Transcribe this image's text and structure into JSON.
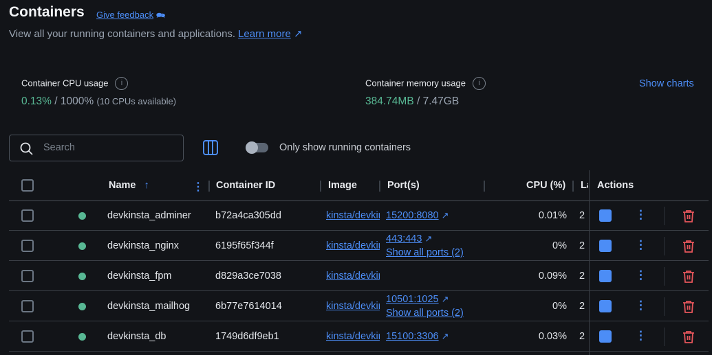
{
  "header": {
    "title": "Containers",
    "feedback": "Give feedback",
    "subtitle": "View all your running containers and applications.",
    "learn_more": "Learn more"
  },
  "stats": {
    "cpu": {
      "label": "Container CPU usage",
      "used": "0.13%",
      "sep": " / ",
      "total": "1000%",
      "note": "(10 CPUs available)"
    },
    "memory": {
      "label": "Container memory usage",
      "used": "384.74MB",
      "sep": " / ",
      "total": "7.47GB"
    },
    "show_charts": "Show charts"
  },
  "toolbar": {
    "search_placeholder": "Search",
    "toggle_label": "Only show running containers",
    "toggle_on": false
  },
  "table": {
    "columns": {
      "name": "Name",
      "id": "Container ID",
      "image": "Image",
      "ports": "Port(s)",
      "cpu": "CPU (%)",
      "last": "La",
      "actions": "Actions"
    },
    "rows": [
      {
        "name": "devkinsta_adminer",
        "id": "b72a4ca305dd",
        "image": "kinsta/devkinsta",
        "port": "15200:8080",
        "more": "",
        "cpu": "0.01%",
        "last": "2"
      },
      {
        "name": "devkinsta_nginx",
        "id": "6195f65f344f",
        "image": "kinsta/devkinsta",
        "port": "443:443",
        "more": "Show all ports (2)",
        "cpu": "0%",
        "last": "2"
      },
      {
        "name": "devkinsta_fpm",
        "id": "d829a3ce7038",
        "image": "kinsta/devkinsta",
        "port": "",
        "more": "",
        "cpu": "0.09%",
        "last": "2"
      },
      {
        "name": "devkinsta_mailhog",
        "id": "6b77e7614014",
        "image": "kinsta/devkinsta",
        "port": "10501:1025",
        "more": "Show all ports (2)",
        "cpu": "0%",
        "last": "2"
      },
      {
        "name": "devkinsta_db",
        "id": "1749d6df9eb1",
        "image": "kinsta/devkinsta",
        "port": "15100:3306",
        "more": "",
        "cpu": "0.03%",
        "last": "2"
      }
    ]
  },
  "colors": {
    "accent": "#4c8df6",
    "running": "#58b894",
    "danger": "#e5555b",
    "background": "#121418"
  }
}
